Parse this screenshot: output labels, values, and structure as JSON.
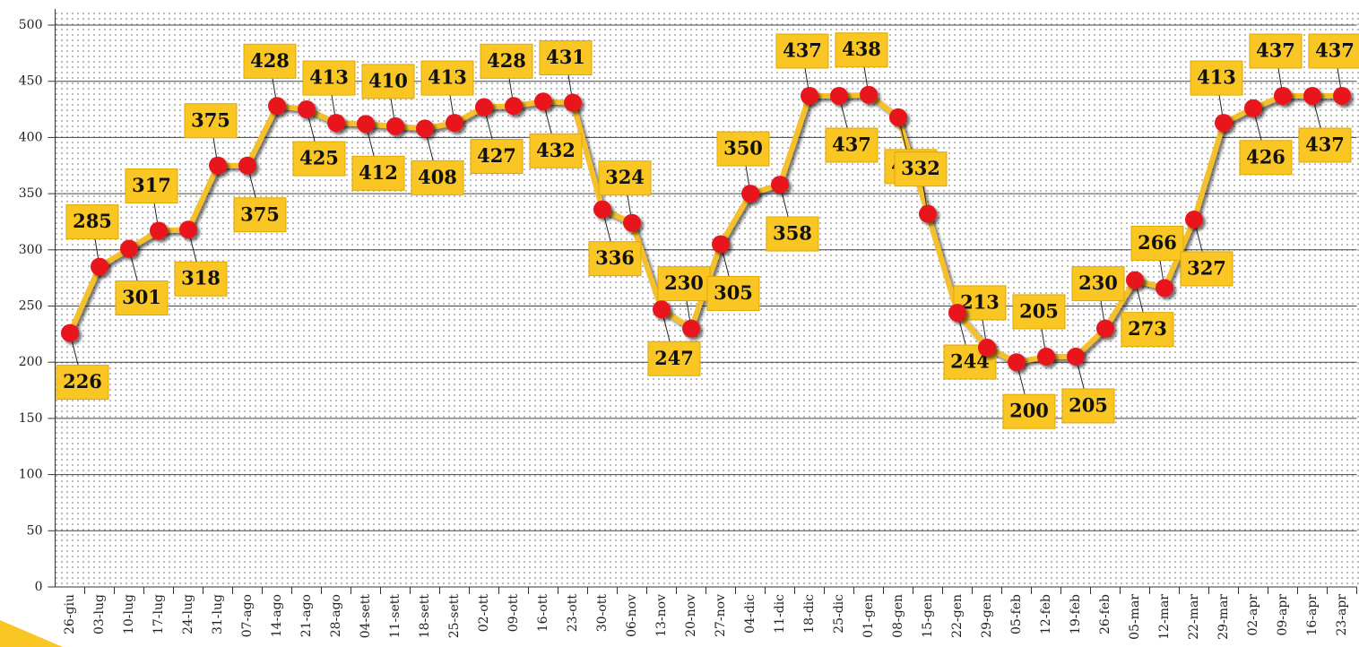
{
  "chart_data": {
    "type": "line",
    "categories": [
      "26-giu",
      "03-lug",
      "10-lug",
      "17-lug",
      "24-lug",
      "31-lug",
      "07-ago",
      "14-ago",
      "21-ago",
      "28-ago",
      "04-sett",
      "11-sett",
      "18-sett",
      "25-sett",
      "02-ott",
      "09-ott",
      "16-ott",
      "23-ott",
      "30-ott",
      "06-nov",
      "13-nov",
      "20-nov",
      "27-nov",
      "04-dic",
      "11-dic",
      "18-dic",
      "25-dic",
      "01-gen",
      "08-gen",
      "15-gen",
      "22-gen",
      "29-gen",
      "05-feb",
      "12-feb",
      "19-feb",
      "26-feb",
      "05-mar",
      "12-mar",
      "22-mar",
      "29-mar",
      "02-apr",
      "09-apr",
      "16-apr",
      "23-apr"
    ],
    "values": [
      226,
      285,
      301,
      317,
      318,
      375,
      375,
      428,
      425,
      413,
      412,
      410,
      408,
      413,
      427,
      428,
      432,
      431,
      336,
      324,
      247,
      230,
      305,
      350,
      358,
      437,
      437,
      438,
      418,
      332,
      244,
      213,
      200,
      205,
      205,
      230,
      273,
      266,
      327,
      413,
      426,
      437,
      437,
      437
    ],
    "color": "#f5c02a",
    "marker_color": "#e8141c",
    "label_color": "#f9c623",
    "ylim": [
      0,
      500
    ],
    "yticks": [
      0,
      50,
      100,
      150,
      200,
      250,
      300,
      350,
      400,
      450,
      500
    ],
    "grid": true
  }
}
